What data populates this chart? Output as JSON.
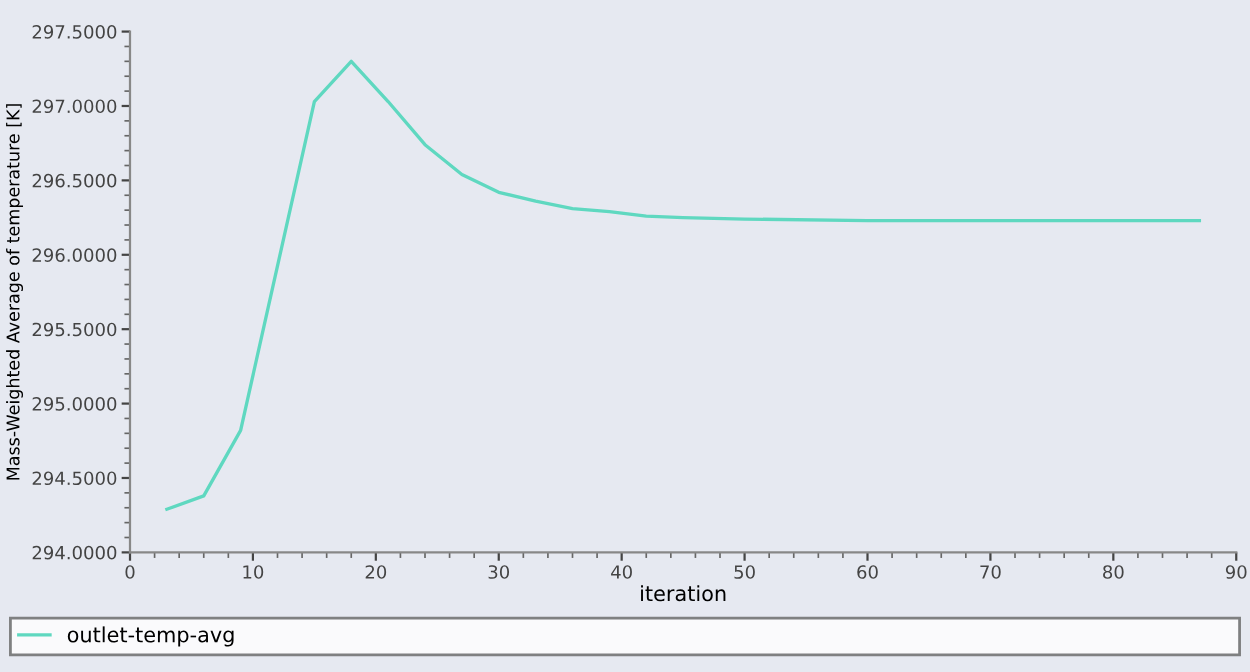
{
  "chart_data": {
    "type": "line",
    "xlabel": "iteration",
    "ylabel": "Mass-Weighted Average of temperature [K]",
    "series": [
      {
        "name": "outlet-temp-avg",
        "color": "#5fd8c0",
        "x": [
          3,
          6,
          9,
          15,
          18,
          21,
          24,
          27,
          30,
          33,
          36,
          39,
          42,
          45,
          50,
          60,
          70,
          80,
          87
        ],
        "values": [
          294.29,
          294.38,
          294.82,
          297.03,
          297.3,
          297.03,
          296.74,
          296.54,
          296.42,
          296.36,
          296.31,
          296.29,
          296.26,
          296.25,
          296.24,
          296.23,
          296.23,
          296.23,
          296.23
        ]
      }
    ],
    "xlim": [
      0,
      90
    ],
    "xticks": [
      0,
      10,
      20,
      30,
      40,
      50,
      60,
      70,
      80,
      90
    ],
    "ylim": [
      294,
      297.5
    ],
    "yticks": [
      {
        "value": 294,
        "label": "294.0000"
      },
      {
        "value": 294.5,
        "label": "294.5000"
      },
      {
        "value": 295,
        "label": "295.0000"
      },
      {
        "value": 295.5,
        "label": "295.5000"
      },
      {
        "value": 296,
        "label": "296.0000"
      },
      {
        "value": 296.5,
        "label": "296.5000"
      },
      {
        "value": 297,
        "label": "297.0000"
      },
      {
        "value": 297.5,
        "label": "297.5000"
      }
    ],
    "grid": false,
    "legend": "bottom",
    "marker": "none",
    "line_style": "solid"
  }
}
